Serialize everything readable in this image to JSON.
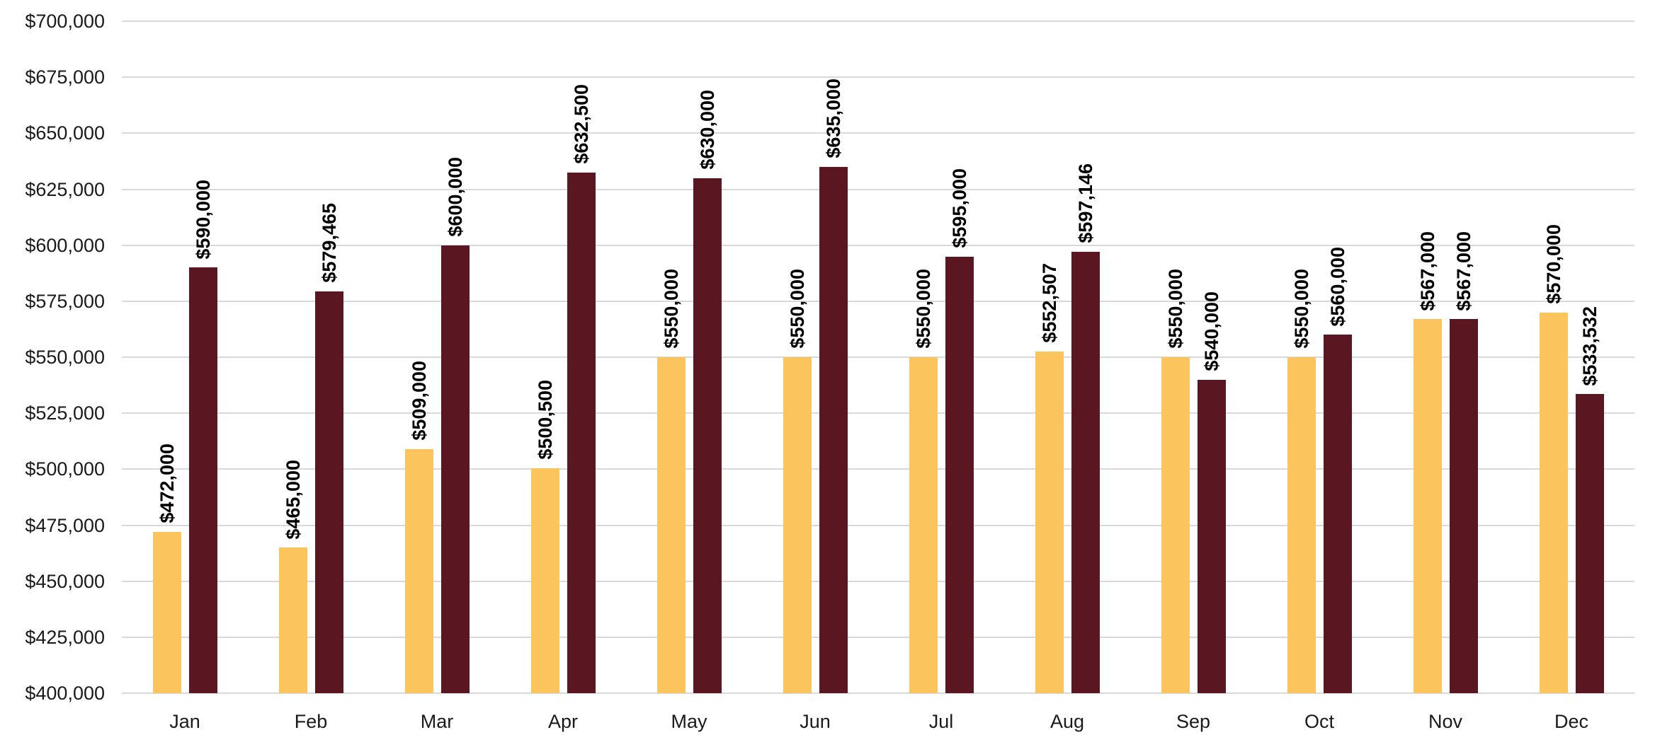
{
  "chart_data": {
    "type": "bar",
    "title": "",
    "xlabel": "",
    "ylabel": "",
    "legend": "none",
    "grid": true,
    "categories": [
      "Jan",
      "Feb",
      "Mar",
      "Apr",
      "May",
      "Jun",
      "Jul",
      "Aug",
      "Sep",
      "Oct",
      "Nov",
      "Dec"
    ],
    "series": [
      {
        "name": "series-1",
        "color": "#FBC45C",
        "values": [
          472000,
          465000,
          509000,
          500500,
          550000,
          550000,
          550000,
          552507,
          550000,
          550000,
          567000,
          570000
        ]
      },
      {
        "name": "series-2",
        "color": "#5A1722",
        "values": [
          590000,
          579465,
          600000,
          632500,
          630000,
          635000,
          595000,
          597146,
          540000,
          560000,
          567000,
          533532
        ]
      }
    ],
    "data_labels": {
      "series1": [
        "$472,000",
        "$465,000",
        "$509,000",
        "$500,500",
        "$550,000",
        "$550,000",
        "$550,000",
        "$552,507",
        "$550,000",
        "$550,000",
        "$567,000",
        "$570,000"
      ],
      "series2": [
        "$590,000",
        "$579,465",
        "$600,000",
        "$632,500",
        "$630,000",
        "$635,000",
        "$595,000",
        "$597,146",
        "$540,000",
        "$560,000",
        "$567,000",
        "$533,532"
      ]
    },
    "ylim": [
      400000,
      700000
    ],
    "ytick_step": 25000,
    "ytick_labels": [
      "$400,000",
      "$425,000",
      "$450,000",
      "$475,000",
      "$500,000",
      "$525,000",
      "$550,000",
      "$575,000",
      "$600,000",
      "$625,000",
      "$650,000",
      "$675,000",
      "$700,000"
    ],
    "label_rotation_deg": 90,
    "gridline_color": "#D9D9D9",
    "axis_text_color": "#1A1A1A",
    "background_color": "#FFFFFF"
  }
}
